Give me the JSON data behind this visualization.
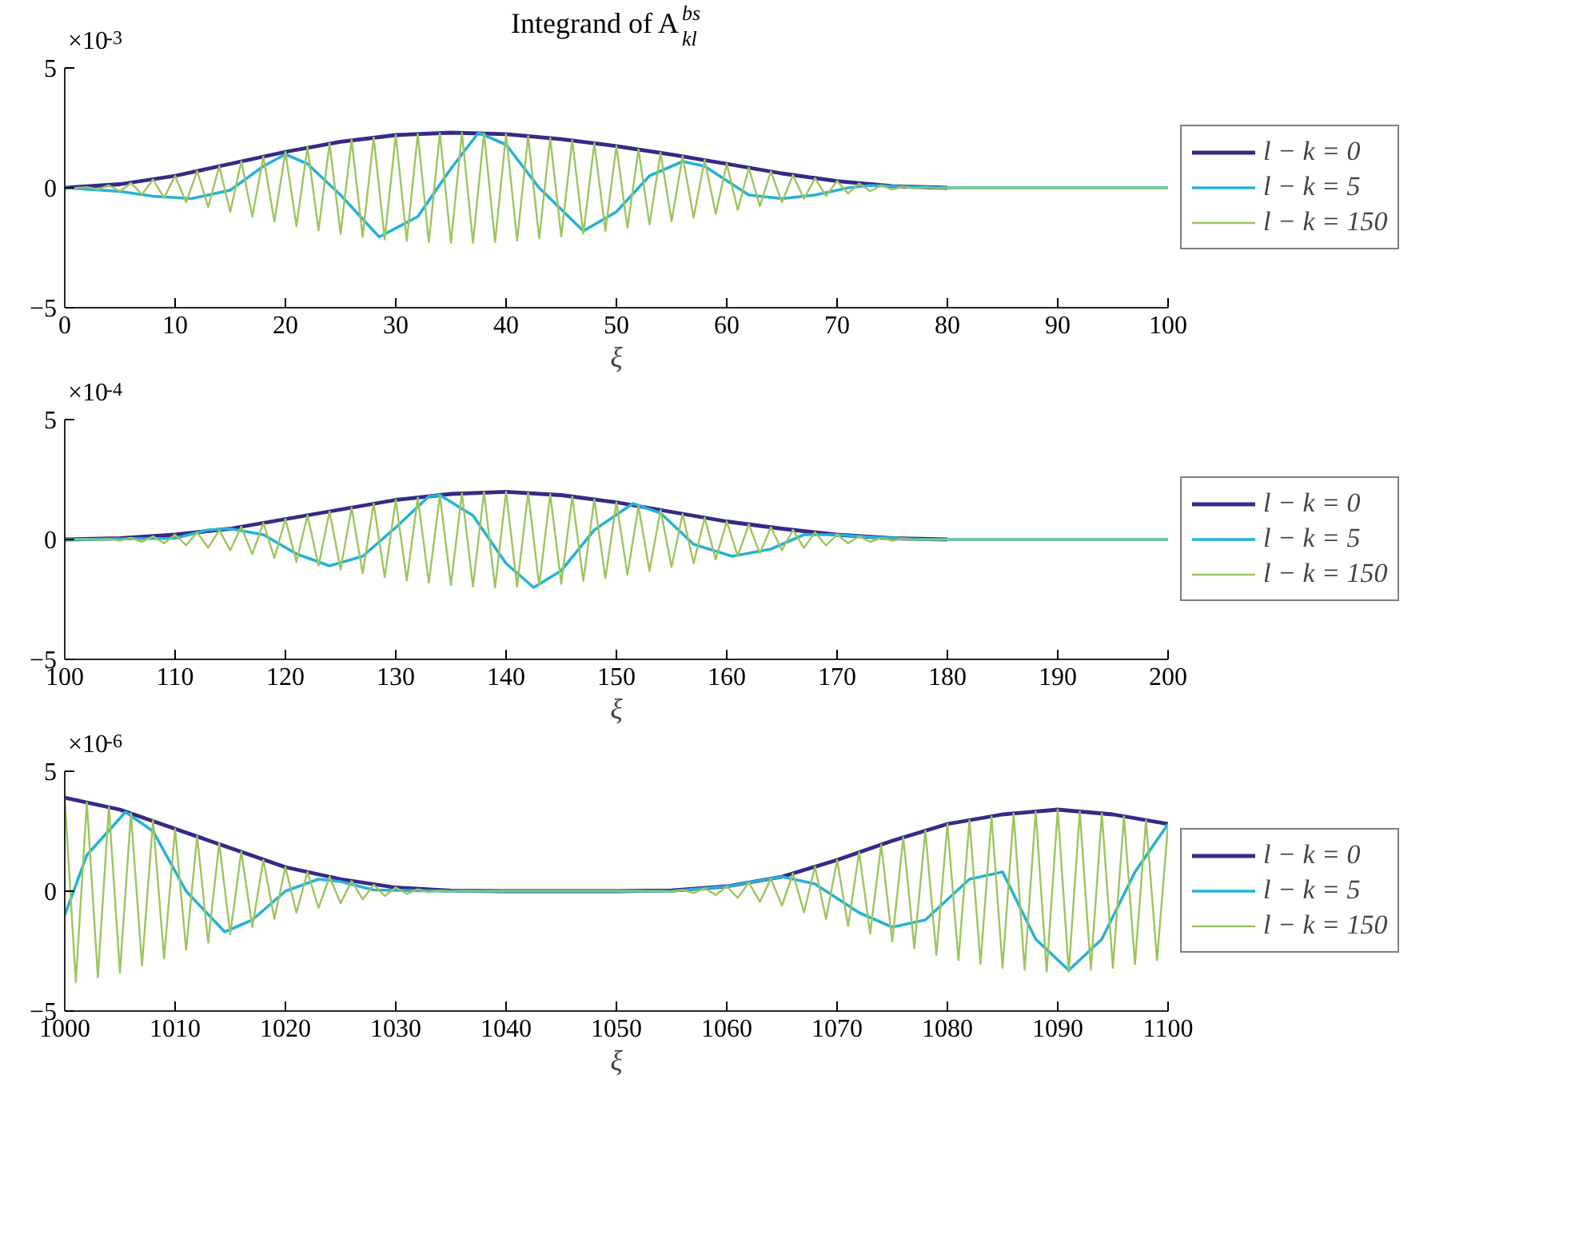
{
  "chart_data": [
    {
      "type": "line",
      "title": "Integrand of A$^{bs}$$_{kl}$",
      "xlabel": "ξ",
      "annotations": [
        "×10$^{-3}$"
      ],
      "xlim": [
        0,
        100
      ],
      "xticks": [
        0,
        10,
        20,
        30,
        40,
        50,
        60,
        70,
        80,
        90,
        100
      ],
      "ylim": [
        -5,
        5
      ],
      "yticks": [
        -5,
        0,
        5
      ],
      "grid": false,
      "legend": "right",
      "series": [
        {
          "name": "l − k = 0",
          "color": "#352a87",
          "x": [
            0,
            5,
            10,
            15,
            20,
            25,
            30,
            35,
            40,
            45,
            50,
            55,
            60,
            65,
            70,
            75,
            80
          ],
          "values": [
            0,
            0.15,
            0.5,
            1.0,
            1.5,
            1.92,
            2.2,
            2.3,
            2.24,
            2.03,
            1.74,
            1.39,
            1.0,
            0.6,
            0.28,
            0.07,
            0
          ]
        },
        {
          "name": "l − k = 5",
          "color": "#25b2d8",
          "x": [
            0,
            5,
            8,
            11.5,
            15,
            18,
            20,
            22,
            25,
            28.5,
            32,
            35,
            37.5,
            40,
            43,
            47,
            50,
            53,
            56,
            58,
            62,
            65,
            68,
            71,
            73,
            80,
            100
          ],
          "values": [
            0,
            -0.15,
            -0.35,
            -0.45,
            -0.1,
            0.9,
            1.4,
            1.0,
            -0.3,
            -2.05,
            -1.2,
            0.8,
            2.3,
            1.8,
            0,
            -1.8,
            -1.0,
            0.5,
            1.1,
            0.9,
            -0.3,
            -0.45,
            -0.3,
            0,
            0.1,
            0,
            0
          ]
        },
        {
          "name": "l − k = 150",
          "color": "#9ec45e",
          "x": [
            0,
            1,
            2,
            3,
            4,
            5,
            6,
            7,
            8,
            9,
            10,
            11,
            12,
            13,
            14,
            15,
            16,
            17,
            18,
            19,
            20,
            21,
            22,
            23,
            24,
            25,
            26,
            27,
            28,
            29,
            30,
            31,
            32,
            33,
            34,
            35,
            36,
            37,
            38,
            39,
            40,
            41,
            42,
            43,
            44,
            45,
            46,
            47,
            48,
            49,
            50,
            51,
            52,
            53,
            54,
            55,
            56,
            57,
            58,
            59,
            60,
            61,
            62,
            63,
            64,
            65,
            66,
            67,
            68,
            69,
            70,
            71,
            72,
            73,
            74,
            75,
            76,
            77,
            78,
            79,
            80,
            100
          ],
          "values": [
            0,
            -0.01,
            0.03,
            -0.06,
            0.1,
            -0.15,
            0.2,
            -0.27,
            0.35,
            -0.42,
            0.5,
            -0.6,
            0.7,
            -0.8,
            0.9,
            -1.0,
            1.1,
            -1.2,
            1.3,
            -1.4,
            1.5,
            -1.6,
            1.7,
            -1.78,
            1.85,
            -1.92,
            2.0,
            -2.05,
            2.1,
            -2.15,
            2.2,
            -2.22,
            2.25,
            -2.27,
            2.28,
            -2.3,
            2.3,
            -2.29,
            2.28,
            -2.26,
            2.24,
            -2.2,
            2.16,
            -2.12,
            2.08,
            -2.03,
            1.98,
            -1.92,
            1.86,
            -1.8,
            1.74,
            -1.67,
            1.6,
            -1.53,
            1.46,
            -1.39,
            1.32,
            -1.24,
            1.16,
            -1.08,
            1.0,
            -0.92,
            0.84,
            -0.76,
            0.68,
            -0.6,
            0.53,
            -0.46,
            0.4,
            -0.34,
            0.28,
            -0.23,
            0.18,
            -0.14,
            0.1,
            -0.07,
            0.05,
            -0.03,
            0.02,
            -0.01,
            0,
            0
          ]
        }
      ]
    },
    {
      "type": "line",
      "xlabel": "ξ",
      "annotations": [
        "×10$^{-4}$"
      ],
      "xlim": [
        100,
        200
      ],
      "xticks": [
        100,
        110,
        120,
        130,
        140,
        150,
        160,
        170,
        180,
        190,
        200
      ],
      "ylim": [
        -5,
        5
      ],
      "yticks": [
        -5,
        0,
        5
      ],
      "grid": false,
      "legend": "right",
      "series": [
        {
          "name": "l − k = 0",
          "color": "#352a87",
          "x": [
            100,
            105,
            110,
            115,
            120,
            125,
            130,
            135,
            140,
            145,
            150,
            155,
            160,
            165,
            170,
            175,
            180
          ],
          "values": [
            0,
            0.05,
            0.2,
            0.45,
            0.85,
            1.25,
            1.65,
            1.9,
            1.99,
            1.85,
            1.55,
            1.15,
            0.75,
            0.45,
            0.2,
            0.05,
            0
          ]
        },
        {
          "name": "l − k = 5",
          "color": "#25b2d8",
          "x": [
            100,
            110,
            113,
            115,
            118,
            121,
            124,
            127,
            130,
            133,
            134,
            137,
            140,
            142.5,
            145,
            148,
            151.5,
            154,
            157,
            160.5,
            164,
            167,
            170,
            173,
            178,
            200
          ],
          "values": [
            0,
            0.05,
            0.4,
            0.45,
            0.2,
            -0.6,
            -1.1,
            -0.7,
            0.5,
            1.8,
            1.85,
            1.0,
            -1.0,
            -2.0,
            -1.3,
            0.4,
            1.5,
            1.1,
            -0.2,
            -0.7,
            -0.4,
            0.2,
            0.2,
            0.1,
            0,
            0
          ]
        },
        {
          "name": "l − k = 150",
          "color": "#9ec45e",
          "x": [
            100,
            101,
            102,
            103,
            104,
            105,
            106,
            107,
            108,
            109,
            110,
            111,
            112,
            113,
            114,
            115,
            116,
            117,
            118,
            119,
            120,
            121,
            122,
            123,
            124,
            125,
            126,
            127,
            128,
            129,
            130,
            131,
            132,
            133,
            134,
            135,
            136,
            137,
            138,
            139,
            140,
            141,
            142,
            143,
            144,
            145,
            146,
            147,
            148,
            149,
            150,
            151,
            152,
            153,
            154,
            155,
            156,
            157,
            158,
            159,
            160,
            161,
            162,
            163,
            164,
            165,
            166,
            167,
            168,
            169,
            170,
            171,
            172,
            173,
            174,
            175,
            176,
            177,
            178,
            179,
            200
          ],
          "values": [
            0,
            0,
            0.01,
            -0.02,
            0.03,
            -0.05,
            0.07,
            -0.1,
            0.13,
            -0.16,
            0.2,
            -0.24,
            0.29,
            -0.34,
            0.39,
            -0.45,
            0.53,
            -0.61,
            0.69,
            -0.77,
            0.85,
            -0.93,
            1.01,
            -1.09,
            1.17,
            -1.25,
            1.33,
            -1.41,
            1.49,
            -1.57,
            1.65,
            -1.7,
            1.75,
            -1.8,
            1.85,
            -1.9,
            1.93,
            -1.96,
            1.98,
            -2.0,
            1.99,
            -1.97,
            1.95,
            -1.92,
            1.89,
            -1.85,
            1.79,
            -1.73,
            1.67,
            -1.61,
            1.55,
            -1.47,
            1.39,
            -1.31,
            1.23,
            -1.15,
            1.07,
            -0.99,
            0.91,
            -0.83,
            0.75,
            -0.69,
            0.63,
            -0.57,
            0.51,
            -0.45,
            0.4,
            -0.35,
            0.3,
            -0.25,
            0.2,
            -0.16,
            0.13,
            -0.1,
            0.07,
            -0.05,
            0.03,
            -0.02,
            0.01,
            0,
            0
          ]
        }
      ]
    },
    {
      "type": "line",
      "xlabel": "ξ",
      "annotations": [
        "×10$^{-6}$"
      ],
      "xlim": [
        1000,
        1100
      ],
      "xticks": [
        1000,
        1010,
        1020,
        1030,
        1040,
        1050,
        1060,
        1070,
        1080,
        1090,
        1100
      ],
      "ylim": [
        -5,
        5
      ],
      "yticks": [
        -5,
        0,
        5
      ],
      "grid": false,
      "legend": "right",
      "series": [
        {
          "name": "l − k = 0",
          "color": "#352a87",
          "x": [
            1000,
            1005,
            1010,
            1015,
            1020,
            1025,
            1030,
            1035,
            1040,
            1045,
            1050,
            1055,
            1060,
            1065,
            1070,
            1075,
            1080,
            1085,
            1090,
            1095,
            1100
          ],
          "values": [
            3.9,
            3.4,
            2.6,
            1.8,
            1.0,
            0.5,
            0.15,
            0.02,
            0,
            0,
            0,
            0.03,
            0.2,
            0.6,
            1.3,
            2.1,
            2.8,
            3.2,
            3.4,
            3.2,
            2.8
          ]
        },
        {
          "name": "l − k = 5",
          "color": "#25b2d8",
          "x": [
            1000,
            1002,
            1005.5,
            1008,
            1011,
            1014.5,
            1017,
            1020,
            1023,
            1025,
            1028,
            1035,
            1055,
            1060,
            1065,
            1068,
            1072,
            1075,
            1078,
            1082,
            1085,
            1088,
            1091,
            1094,
            1097,
            1100
          ],
          "values": [
            -1.0,
            1.5,
            3.3,
            2.5,
            0,
            -1.7,
            -1.2,
            0,
            0.5,
            0.4,
            0.05,
            0,
            0,
            0.2,
            0.6,
            0.3,
            -0.9,
            -1.5,
            -1.2,
            0.5,
            0.8,
            -2.0,
            -3.3,
            -2.0,
            0.8,
            2.8
          ]
        },
        {
          "name": "l − k = 150",
          "color": "#9ec45e",
          "x": [
            1000,
            1001,
            1002,
            1003,
            1004,
            1005,
            1006,
            1007,
            1008,
            1009,
            1010,
            1011,
            1012,
            1013,
            1014,
            1015,
            1016,
            1017,
            1018,
            1019,
            1020,
            1021,
            1022,
            1023,
            1024,
            1025,
            1026,
            1027,
            1028,
            1029,
            1030,
            1031,
            1032,
            1033,
            1034,
            1035,
            1036,
            1037,
            1054,
            1055,
            1056,
            1057,
            1058,
            1059,
            1060,
            1061,
            1062,
            1063,
            1064,
            1065,
            1066,
            1067,
            1068,
            1069,
            1070,
            1071,
            1072,
            1073,
            1074,
            1075,
            1076,
            1077,
            1078,
            1079,
            1080,
            1081,
            1082,
            1083,
            1084,
            1085,
            1086,
            1087,
            1088,
            1089,
            1090,
            1091,
            1092,
            1093,
            1094,
            1095,
            1096,
            1097,
            1098,
            1099,
            1100
          ],
          "values": [
            3.9,
            -3.8,
            3.7,
            -3.6,
            3.5,
            -3.4,
            3.25,
            -3.1,
            2.95,
            -2.8,
            2.6,
            -2.45,
            2.3,
            -2.15,
            2.0,
            -1.8,
            1.65,
            -1.5,
            1.3,
            -1.15,
            1.0,
            -0.9,
            0.8,
            -0.7,
            0.6,
            -0.5,
            0.42,
            -0.34,
            0.27,
            -0.2,
            0.15,
            -0.11,
            0.08,
            -0.05,
            0.03,
            -0.02,
            0.01,
            0,
            0,
            -0.03,
            0.05,
            -0.08,
            0.12,
            -0.16,
            0.2,
            -0.28,
            0.36,
            -0.44,
            0.52,
            -0.6,
            0.74,
            -0.88,
            1.02,
            -1.16,
            1.3,
            -1.46,
            1.62,
            -1.78,
            1.94,
            -2.1,
            2.24,
            -2.38,
            2.52,
            -2.66,
            2.8,
            -2.88,
            2.96,
            -3.04,
            3.12,
            -3.2,
            3.24,
            -3.28,
            3.32,
            -3.36,
            3.4,
            -3.36,
            3.32,
            -3.28,
            3.24,
            -3.2,
            3.12,
            -3.04,
            2.96,
            -2.88,
            2.8
          ]
        }
      ]
    }
  ]
}
